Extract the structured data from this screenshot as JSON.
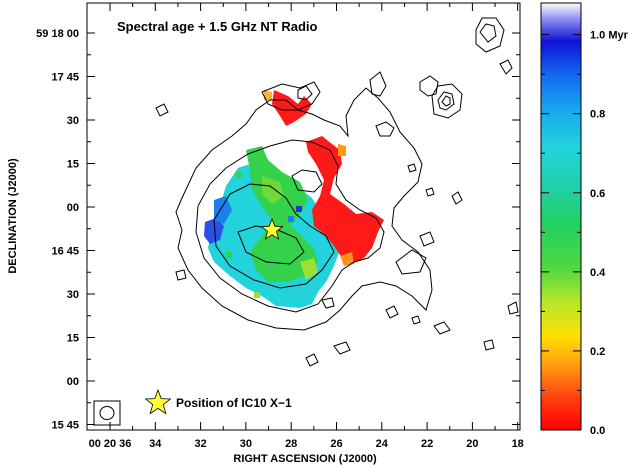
{
  "chart_data": {
    "type": "heatmap",
    "title": "Spectral age + 1.5 GHz NT Radio",
    "xlabel": "RIGHT ASCENSION (J2000)",
    "ylabel": "DECLINATION (J2000)",
    "x_ticks": [
      "00 20 36",
      "34",
      "32",
      "30",
      "28",
      "26",
      "24",
      "22",
      "20",
      "18"
    ],
    "y_ticks": [
      "59 18 00",
      "17 45",
      "30",
      "15",
      "00",
      "16 45",
      "30",
      "15",
      "00",
      "15 45"
    ],
    "colorbar": {
      "ticks": [
        "0.0",
        "0.2",
        "0.4",
        "0.6",
        "0.8",
        "1.0 Myr"
      ],
      "range": [
        0.0,
        1.08
      ]
    },
    "annotation": "Position of IC10 X−1",
    "marker": "star-icon",
    "regions": [
      {
        "name": "red-arc",
        "age_myr": 0.0
      },
      {
        "name": "blue-west",
        "age_myr": 0.9
      },
      {
        "name": "cyan-core",
        "age_myr": 0.68
      },
      {
        "name": "green-core",
        "age_myr": 0.45
      }
    ]
  },
  "colors": {
    "red": "#ff1a1a",
    "cyan": "#22d3dc",
    "green": "#33d24a",
    "blue": "#2030e0",
    "star": "#ffff33"
  }
}
